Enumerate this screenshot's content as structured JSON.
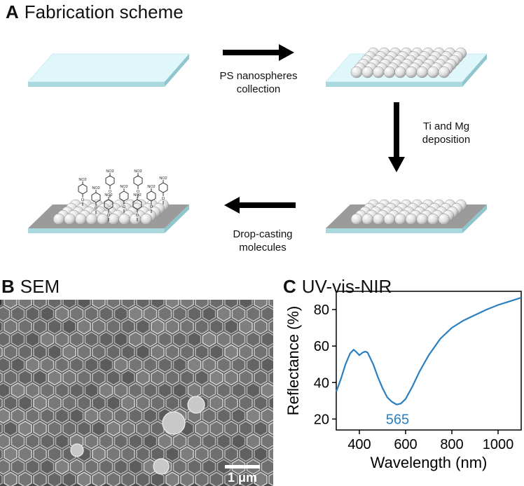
{
  "panels": {
    "a": {
      "letter": "A",
      "title": "Fabrication scheme"
    },
    "b": {
      "letter": "B",
      "title": "SEM"
    },
    "c": {
      "letter": "C",
      "title": "UV-vis-NIR"
    }
  },
  "steps": {
    "step1": {
      "line1": "PS nanospheres",
      "line2": "collection"
    },
    "step2": {
      "line1": "Ti and Mg",
      "line2": "deposition"
    },
    "step3": {
      "line1": "Drop-casting",
      "line2": "molecules"
    }
  },
  "molecule_labels": {
    "nitro": "NO2",
    "oxygen": "O",
    "sulfur": "S"
  },
  "sem": {
    "scale_bar": "1 μm"
  },
  "colors": {
    "substrate": "#a9d9df",
    "substrate_top": "#dff7fa",
    "metal": "#9b9b9b",
    "sphere": "#e3e3e3",
    "curve": "#2a7fc0"
  },
  "chart_data": {
    "type": "line",
    "xlabel": "Wavelength (nm)",
    "ylabel": "Reflectance (%)",
    "xlim": [
      300,
      1100
    ],
    "ylim": [
      14,
      90
    ],
    "xticks": [
      400,
      600,
      800,
      1000
    ],
    "yticks": [
      20,
      40,
      60,
      80
    ],
    "annotation": {
      "text": "565",
      "x": 565,
      "y": 20
    },
    "series": [
      {
        "x": [
          300,
          320,
          340,
          360,
          375,
          385,
          400,
          415,
          425,
          435,
          445,
          460,
          480,
          500,
          520,
          540,
          560,
          565,
          580,
          600,
          630,
          660,
          700,
          750,
          800,
          850,
          900,
          950,
          1000,
          1050,
          1100
        ],
        "y": [
          35,
          42,
          50,
          56,
          58,
          57,
          55,
          56.5,
          57,
          56.5,
          54,
          50,
          43,
          37,
          32,
          29.5,
          28,
          28,
          28.5,
          31,
          38,
          46,
          55,
          64,
          70,
          74,
          77,
          80,
          82.5,
          84.5,
          86.5
        ]
      }
    ]
  }
}
